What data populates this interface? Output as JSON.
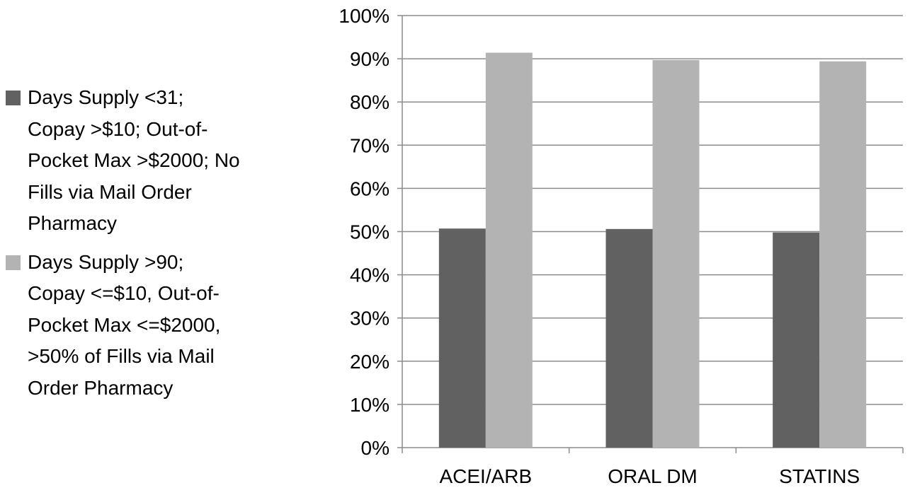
{
  "chart_data": {
    "type": "bar",
    "categories": [
      "ACEI/ARB",
      "ORAL DM",
      "STATINS"
    ],
    "series": [
      {
        "name": "Days Supply <31;\nCopay >$10; Out-of-\nPocket Max >$2000; No\nFills via Mail Order\nPharmacy",
        "values": [
          50.7,
          50.6,
          49.8
        ],
        "color": "#616161"
      },
      {
        "name": "Days Supply >90;\nCopay <=$10, Out-of-\nPocket Max <=$2000,\n>50% of Fills via Mail\nOrder Pharmacy",
        "values": [
          91.4,
          89.7,
          89.4
        ],
        "color": "#b3b3b3"
      }
    ],
    "title": "",
    "xlabel": "",
    "ylabel": "",
    "ylim": [
      0,
      100
    ],
    "yticks": [
      "0%",
      "10%",
      "20%",
      "30%",
      "40%",
      "50%",
      "60%",
      "70%",
      "80%",
      "90%",
      "100%"
    ],
    "grid": "horizontal",
    "legend": "left"
  }
}
